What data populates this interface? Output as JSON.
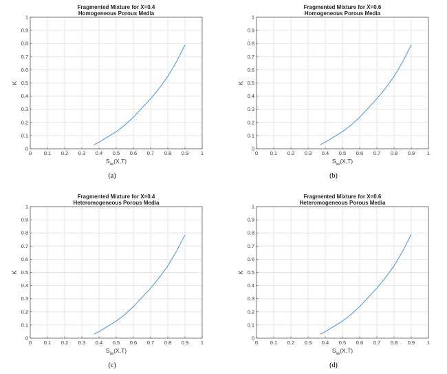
{
  "figure": {
    "line_color": "#4a90d9",
    "grid_color": "#e6e6e6",
    "axis_color": "#444444"
  },
  "chart_data": [
    {
      "type": "line",
      "title": "Fragmented Mixture for X=0.4",
      "subtitle": "Homogeneous Porous Media",
      "xlabel_main": "S",
      "xlabel_sub": "iw",
      "xlabel_rest": "(X,T)",
      "ylabel": "K",
      "caption": "(a)",
      "xlim": [
        0,
        1
      ],
      "ylim": [
        0,
        1
      ],
      "xticks": [
        "0",
        "0.1",
        "0.2",
        "0.3",
        "0.4",
        "0.5",
        "0.6",
        "0.7",
        "0.8",
        "0.9",
        "1"
      ],
      "yticks": [
        "0",
        "0.1",
        "0.2",
        "0.3",
        "0.4",
        "0.5",
        "0.6",
        "0.7",
        "0.8",
        "0.9",
        "1"
      ],
      "grid": true,
      "series": [
        {
          "x": [
            0.37,
            0.4,
            0.45,
            0.5,
            0.55,
            0.6,
            0.65,
            0.7,
            0.75,
            0.8,
            0.85,
            0.9
          ],
          "y": [
            0.03,
            0.05,
            0.09,
            0.13,
            0.18,
            0.24,
            0.31,
            0.38,
            0.46,
            0.55,
            0.66,
            0.79
          ]
        }
      ]
    },
    {
      "type": "line",
      "title": "Fragmented Mixture for X=0.6",
      "subtitle": "Homogeneous Porous Media",
      "xlabel_main": "S",
      "xlabel_sub": "iw",
      "xlabel_rest": "(X,T)",
      "ylabel": "K",
      "caption": "(b)",
      "xlim": [
        0,
        1
      ],
      "ylim": [
        0,
        1
      ],
      "xticks": [
        "0",
        "0.1",
        "0.2",
        "0.3",
        "0.4",
        "0.5",
        "0.6",
        "0.7",
        "0.8",
        "0.9",
        "1"
      ],
      "yticks": [
        "0",
        "0.1",
        "0.2",
        "0.3",
        "0.4",
        "0.5",
        "0.6",
        "0.7",
        "0.8",
        "0.9",
        "1"
      ],
      "grid": true,
      "series": [
        {
          "x": [
            0.37,
            0.4,
            0.45,
            0.5,
            0.55,
            0.6,
            0.65,
            0.7,
            0.75,
            0.8,
            0.85,
            0.9
          ],
          "y": [
            0.03,
            0.05,
            0.09,
            0.13,
            0.18,
            0.24,
            0.31,
            0.38,
            0.46,
            0.55,
            0.66,
            0.79
          ]
        }
      ]
    },
    {
      "type": "line",
      "title": "Fragmented Mixture for X=0.4",
      "subtitle": "Heteromogeneous Porous Media",
      "xlabel_main": "S",
      "xlabel_sub": "iw",
      "xlabel_rest": "(X,T)",
      "ylabel": "K",
      "caption": "(c)",
      "xlim": [
        0,
        1
      ],
      "ylim": [
        0,
        1
      ],
      "xticks": [
        "0",
        "0.1",
        "0.2",
        "0.3",
        "0.4",
        "0.5",
        "0.6",
        "0.7",
        "0.8",
        "0.9",
        "1"
      ],
      "yticks": [
        "0",
        "0.1",
        "0.2",
        "0.3",
        "0.4",
        "0.5",
        "0.6",
        "0.7",
        "0.8",
        "0.9",
        "1"
      ],
      "grid": true,
      "series": [
        {
          "x": [
            0.37,
            0.4,
            0.45,
            0.5,
            0.55,
            0.6,
            0.65,
            0.7,
            0.75,
            0.8,
            0.85,
            0.9
          ],
          "y": [
            0.03,
            0.05,
            0.09,
            0.13,
            0.18,
            0.24,
            0.31,
            0.38,
            0.46,
            0.55,
            0.66,
            0.785
          ]
        }
      ]
    },
    {
      "type": "line",
      "title": "Fragmented Mixture for X=0.6",
      "subtitle": "Heteromogeneous Porous Media",
      "xlabel_main": "S",
      "xlabel_sub": "iw",
      "xlabel_rest": "(X,T)",
      "ylabel": "K",
      "caption": "(d)",
      "xlim": [
        0,
        1
      ],
      "ylim": [
        0,
        1
      ],
      "xticks": [
        "0",
        "0.1",
        "0.2",
        "0.3",
        "0.4",
        "0.5",
        "0.6",
        "0.7",
        "0.8",
        "0.9",
        "1"
      ],
      "yticks": [
        "0",
        "0.1",
        "0.2",
        "0.3",
        "0.4",
        "0.5",
        "0.6",
        "0.7",
        "0.8",
        "0.9",
        "1"
      ],
      "grid": true,
      "series": [
        {
          "x": [
            0.37,
            0.4,
            0.45,
            0.5,
            0.55,
            0.6,
            0.65,
            0.7,
            0.75,
            0.8,
            0.85,
            0.9
          ],
          "y": [
            0.03,
            0.05,
            0.09,
            0.13,
            0.18,
            0.24,
            0.31,
            0.38,
            0.46,
            0.55,
            0.66,
            0.79
          ]
        }
      ]
    }
  ]
}
